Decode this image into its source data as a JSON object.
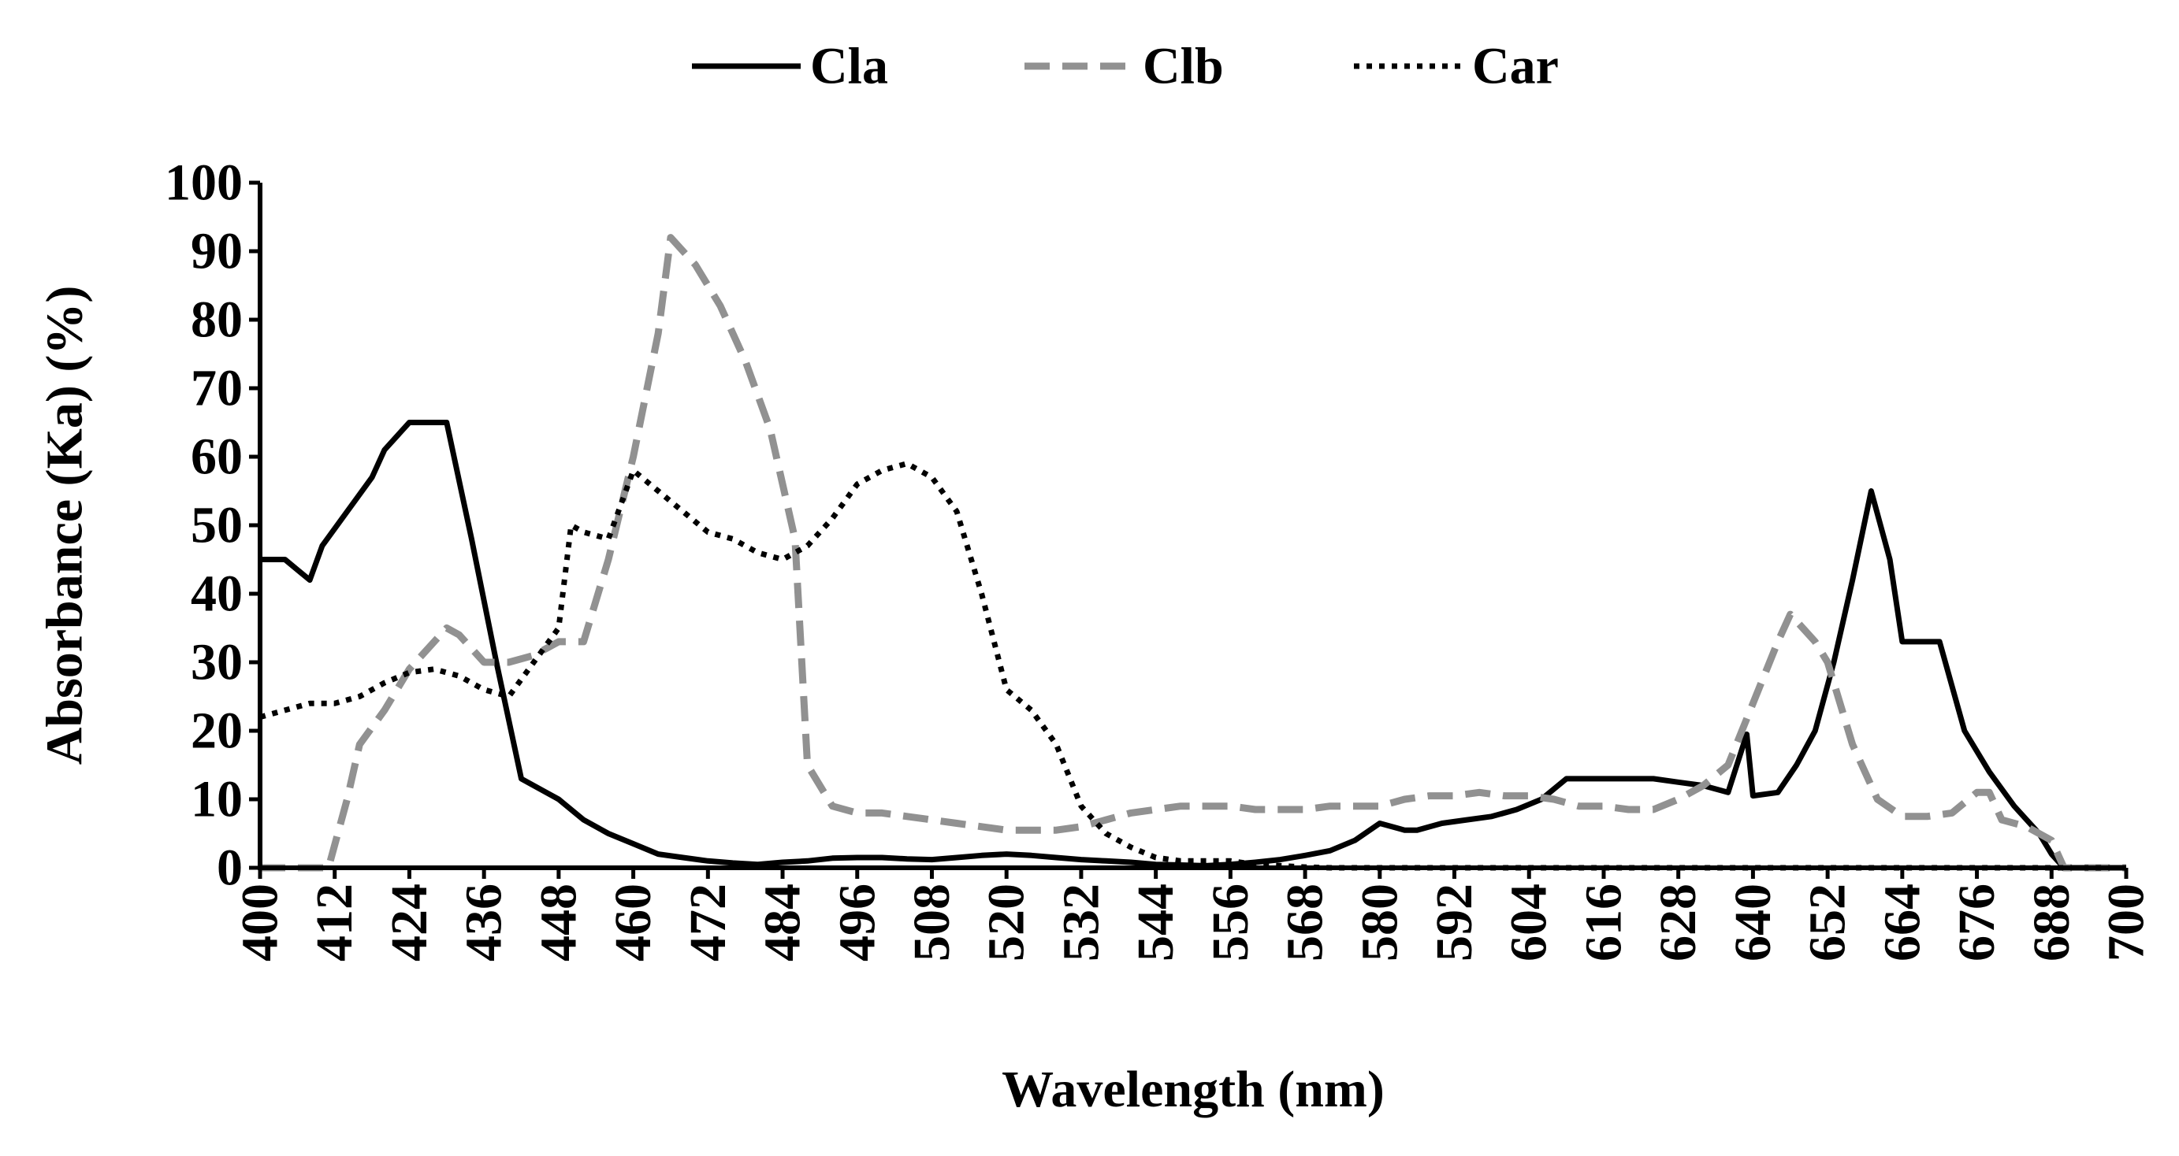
{
  "chart_data": {
    "type": "line",
    "title": "",
    "xlabel": "Wavelength (nm)",
    "ylabel": "Absorbance (Ka) (%)",
    "xlim": [
      400,
      700
    ],
    "ylim": [
      0,
      100
    ],
    "x_ticks": [
      400,
      412,
      424,
      436,
      448,
      460,
      472,
      484,
      496,
      508,
      520,
      532,
      544,
      556,
      568,
      580,
      592,
      604,
      616,
      628,
      640,
      652,
      664,
      676,
      688,
      700
    ],
    "y_ticks": [
      0,
      10,
      20,
      30,
      40,
      50,
      60,
      70,
      80,
      90,
      100
    ],
    "legend_position": "top-center",
    "series": [
      {
        "name": "Cla",
        "color": "#000000",
        "style": "solid",
        "points": [
          [
            400,
            45
          ],
          [
            404,
            45
          ],
          [
            408,
            42
          ],
          [
            410,
            47
          ],
          [
            414,
            52
          ],
          [
            418,
            57
          ],
          [
            420,
            61
          ],
          [
            424,
            65
          ],
          [
            428,
            65
          ],
          [
            430,
            65
          ],
          [
            434,
            48
          ],
          [
            438,
            30
          ],
          [
            442,
            13
          ],
          [
            446,
            11
          ],
          [
            448,
            10
          ],
          [
            452,
            7
          ],
          [
            456,
            5
          ],
          [
            460,
            3.5
          ],
          [
            464,
            2
          ],
          [
            468,
            1.5
          ],
          [
            472,
            1
          ],
          [
            476,
            0.7
          ],
          [
            480,
            0.5
          ],
          [
            484,
            0.8
          ],
          [
            488,
            1
          ],
          [
            492,
            1.4
          ],
          [
            496,
            1.5
          ],
          [
            500,
            1.5
          ],
          [
            504,
            1.3
          ],
          [
            508,
            1.2
          ],
          [
            512,
            1.5
          ],
          [
            516,
            1.8
          ],
          [
            520,
            2
          ],
          [
            524,
            1.8
          ],
          [
            528,
            1.5
          ],
          [
            532,
            1.2
          ],
          [
            536,
            1
          ],
          [
            540,
            0.8
          ],
          [
            544,
            0.5
          ],
          [
            548,
            0.4
          ],
          [
            552,
            0.3
          ],
          [
            556,
            0.5
          ],
          [
            560,
            0.8
          ],
          [
            564,
            1.2
          ],
          [
            568,
            1.8
          ],
          [
            572,
            2.5
          ],
          [
            576,
            4
          ],
          [
            580,
            6.5
          ],
          [
            584,
            5.5
          ],
          [
            586,
            5.5
          ],
          [
            590,
            6.5
          ],
          [
            594,
            7
          ],
          [
            598,
            7.5
          ],
          [
            602,
            8.5
          ],
          [
            606,
            10
          ],
          [
            610,
            13
          ],
          [
            614,
            13
          ],
          [
            616,
            13
          ],
          [
            620,
            13
          ],
          [
            624,
            13
          ],
          [
            628,
            12.5
          ],
          [
            632,
            12
          ],
          [
            636,
            11
          ],
          [
            639,
            19.5
          ],
          [
            640,
            10.5
          ],
          [
            644,
            11
          ],
          [
            647,
            15
          ],
          [
            650,
            20
          ],
          [
            653,
            30
          ],
          [
            656,
            42
          ],
          [
            659,
            55
          ],
          [
            662,
            45
          ],
          [
            664,
            33
          ],
          [
            668,
            33
          ],
          [
            670,
            33
          ],
          [
            674,
            20
          ],
          [
            678,
            14
          ],
          [
            682,
            9
          ],
          [
            686,
            5
          ],
          [
            688,
            2
          ],
          [
            690,
            0
          ],
          [
            700,
            0
          ]
        ]
      },
      {
        "name": "Clb",
        "color": "#919191",
        "style": "dashed",
        "points": [
          [
            400,
            0
          ],
          [
            407,
            0
          ],
          [
            411,
            0
          ],
          [
            414,
            10
          ],
          [
            416,
            18
          ],
          [
            420,
            23
          ],
          [
            424,
            29
          ],
          [
            428,
            33
          ],
          [
            430,
            35
          ],
          [
            432,
            34
          ],
          [
            436,
            30
          ],
          [
            440,
            30
          ],
          [
            444,
            31
          ],
          [
            448,
            33
          ],
          [
            452,
            33
          ],
          [
            456,
            45
          ],
          [
            460,
            60
          ],
          [
            464,
            78
          ],
          [
            466,
            92
          ],
          [
            470,
            88
          ],
          [
            474,
            82
          ],
          [
            478,
            74
          ],
          [
            482,
            64
          ],
          [
            486,
            48
          ],
          [
            488,
            15
          ],
          [
            492,
            9
          ],
          [
            496,
            8
          ],
          [
            500,
            8
          ],
          [
            504,
            7.5
          ],
          [
            508,
            7
          ],
          [
            512,
            6.5
          ],
          [
            516,
            6
          ],
          [
            520,
            5.5
          ],
          [
            524,
            5.5
          ],
          [
            528,
            5.5
          ],
          [
            532,
            6
          ],
          [
            536,
            7
          ],
          [
            540,
            8
          ],
          [
            544,
            8.5
          ],
          [
            548,
            9
          ],
          [
            552,
            9
          ],
          [
            556,
            9
          ],
          [
            560,
            8.5
          ],
          [
            564,
            8.5
          ],
          [
            568,
            8.5
          ],
          [
            572,
            9
          ],
          [
            576,
            9
          ],
          [
            580,
            9
          ],
          [
            584,
            10
          ],
          [
            588,
            10.5
          ],
          [
            592,
            10.5
          ],
          [
            596,
            11
          ],
          [
            600,
            10.5
          ],
          [
            604,
            10.5
          ],
          [
            608,
            10
          ],
          [
            612,
            9
          ],
          [
            616,
            9
          ],
          [
            620,
            8.5
          ],
          [
            624,
            8.5
          ],
          [
            628,
            10
          ],
          [
            632,
            12
          ],
          [
            636,
            15
          ],
          [
            640,
            24
          ],
          [
            644,
            33
          ],
          [
            646,
            37
          ],
          [
            650,
            33
          ],
          [
            652,
            30
          ],
          [
            656,
            18
          ],
          [
            660,
            10
          ],
          [
            664,
            7.5
          ],
          [
            668,
            7.5
          ],
          [
            672,
            8
          ],
          [
            676,
            11
          ],
          [
            678,
            11
          ],
          [
            680,
            7
          ],
          [
            684,
            6
          ],
          [
            688,
            4
          ],
          [
            690,
            0
          ],
          [
            700,
            0
          ]
        ]
      },
      {
        "name": "Car",
        "color": "#000000",
        "style": "dotted",
        "points": [
          [
            400,
            22
          ],
          [
            404,
            23
          ],
          [
            408,
            24
          ],
          [
            412,
            24
          ],
          [
            416,
            25
          ],
          [
            420,
            27
          ],
          [
            424,
            28.5
          ],
          [
            428,
            29
          ],
          [
            432,
            28
          ],
          [
            436,
            26
          ],
          [
            440,
            25
          ],
          [
            444,
            30
          ],
          [
            448,
            35
          ],
          [
            450,
            50
          ],
          [
            452,
            49
          ],
          [
            456,
            48
          ],
          [
            460,
            58
          ],
          [
            464,
            55
          ],
          [
            468,
            52
          ],
          [
            472,
            49
          ],
          [
            476,
            48
          ],
          [
            480,
            46
          ],
          [
            484,
            45
          ],
          [
            488,
            47
          ],
          [
            492,
            51
          ],
          [
            496,
            56
          ],
          [
            500,
            58
          ],
          [
            504,
            59
          ],
          [
            508,
            57
          ],
          [
            512,
            52
          ],
          [
            516,
            40
          ],
          [
            520,
            26
          ],
          [
            524,
            23
          ],
          [
            528,
            18
          ],
          [
            532,
            9
          ],
          [
            536,
            5
          ],
          [
            540,
            3
          ],
          [
            544,
            1.5
          ],
          [
            548,
            1
          ],
          [
            552,
            1
          ],
          [
            556,
            1
          ],
          [
            560,
            0.5
          ],
          [
            564,
            0.3
          ],
          [
            568,
            0.1
          ],
          [
            572,
            0
          ],
          [
            700,
            0
          ]
        ]
      }
    ]
  }
}
